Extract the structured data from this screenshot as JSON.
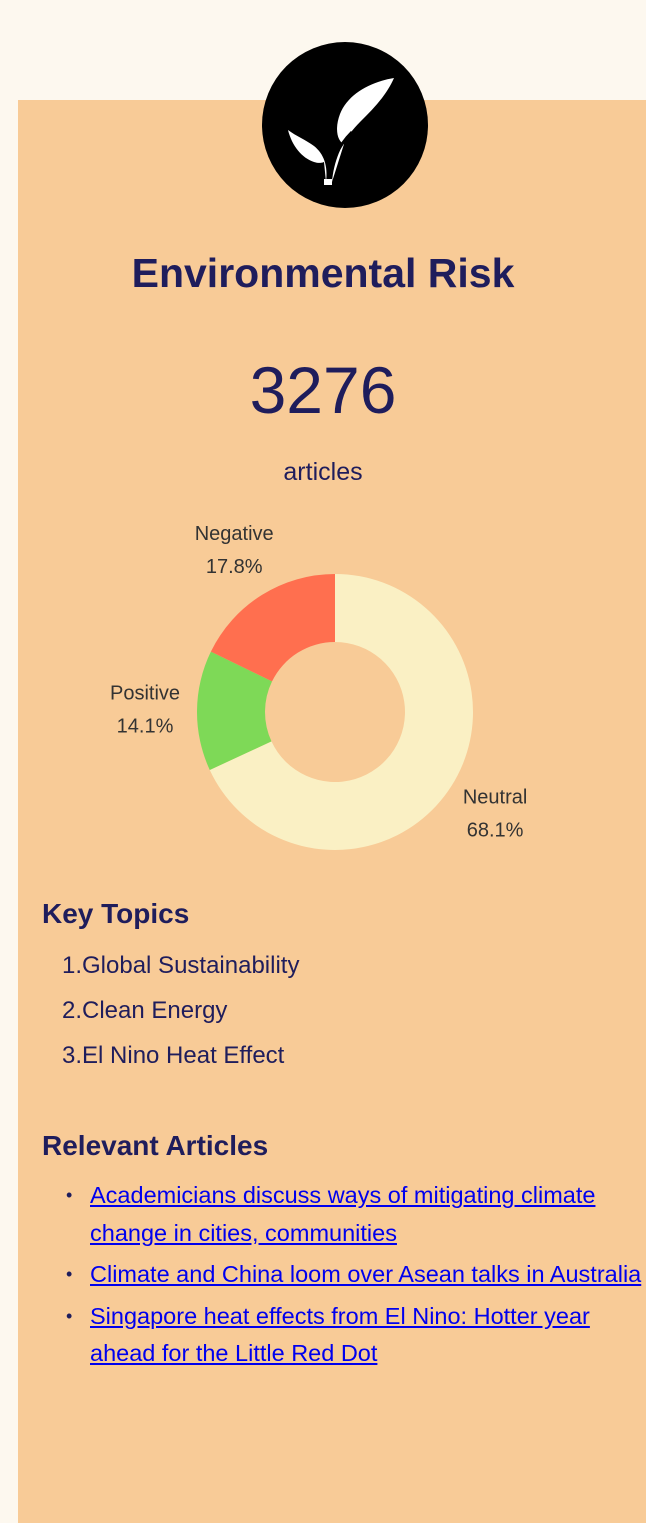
{
  "title": "Environmental Risk",
  "count": "3276",
  "count_label": "articles",
  "chart_data": {
    "type": "donut",
    "categories": [
      "Neutral",
      "Positive",
      "Negative"
    ],
    "values": [
      68.1,
      14.1,
      17.8
    ],
    "value_labels": [
      "68.1%",
      "14.1%",
      "17.8%"
    ],
    "colors": [
      "#faf0c4",
      "#7ed957",
      "#ff6f4f"
    ]
  },
  "key_topics": {
    "heading": "Key Topics",
    "items": [
      "1.Global Sustainability",
      "2.Clean Energy",
      "3.El Nino Heat Effect"
    ]
  },
  "relevant_articles": {
    "heading": "Relevant Articles",
    "items": [
      "Academicians discuss ways of mitigating climate change in cities, communities",
      "Climate and China loom over Asean talks in Australia",
      "Singapore heat effects from El Nino: Hotter year ahead for the Little Red Dot"
    ]
  }
}
